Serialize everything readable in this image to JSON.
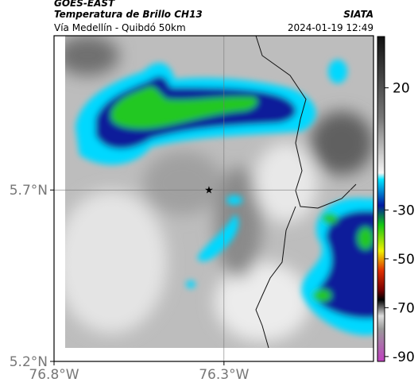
{
  "header": {
    "title": "GOES-EAST",
    "subtitle": "Temperatura de Brillo CH13",
    "source": "SIATA",
    "route": "Vía Medellín - Quibdó 50km",
    "date": "2024-01-19 12:49"
  },
  "map": {
    "lonlim": [
      -76.8,
      -75.86
    ],
    "latlim": [
      5.2,
      6.15
    ],
    "lon_ticks": [
      {
        "value": -76.8,
        "label": "76.8°W"
      },
      {
        "value": -76.3,
        "label": "76.3°W"
      }
    ],
    "lat_ticks": [
      {
        "value": 5.7,
        "label": "5.7°N"
      },
      {
        "value": 5.2,
        "label": "5.2°N"
      }
    ]
  },
  "colorbar": {
    "lim": [
      -92,
      41
    ],
    "ticks": [
      20,
      -30,
      -50,
      -70,
      -90
    ]
  }
}
